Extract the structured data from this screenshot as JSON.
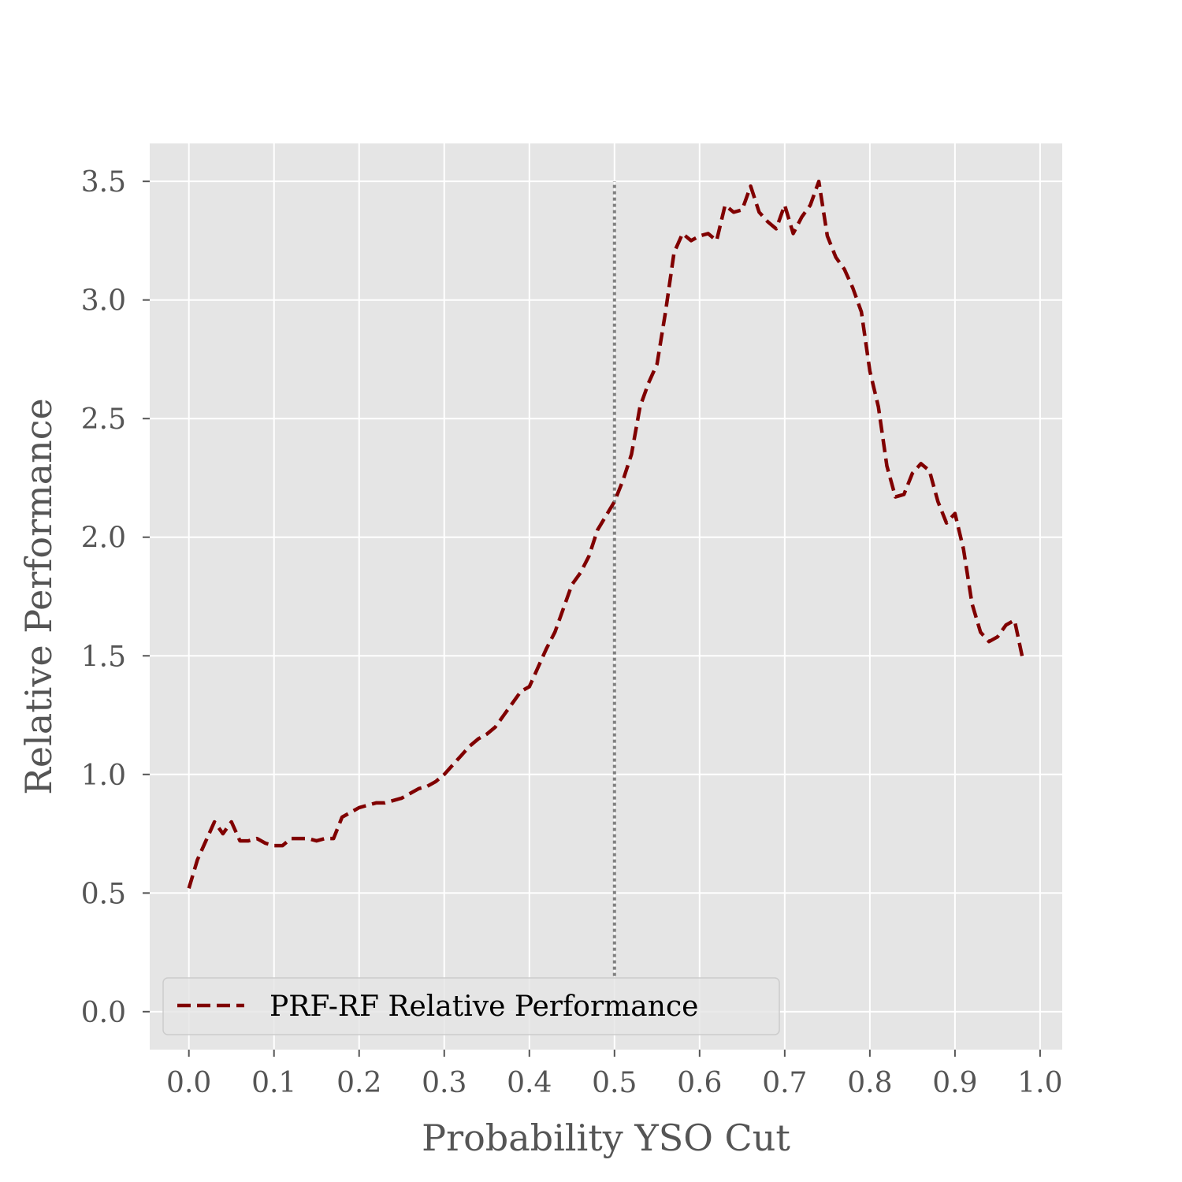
{
  "chart_data": {
    "type": "line",
    "xlabel": "Probability YSO Cut",
    "ylabel": "Relative Performance",
    "xlim": [
      -0.046,
      1.026
    ],
    "ylim": [
      -0.16,
      3.66
    ],
    "xticks": [
      0.0,
      0.1,
      0.2,
      0.3,
      0.4,
      0.5,
      0.6,
      0.7,
      0.8,
      0.9,
      1.0
    ],
    "xtick_labels": [
      "0.0",
      "0.1",
      "0.2",
      "0.3",
      "0.4",
      "0.5",
      "0.6",
      "0.7",
      "0.8",
      "0.9",
      "1.0"
    ],
    "yticks": [
      0.0,
      0.5,
      1.0,
      1.5,
      2.0,
      2.5,
      3.0,
      3.5
    ],
    "ytick_labels": [
      "0.0",
      "0.5",
      "1.0",
      "1.5",
      "2.0",
      "2.5",
      "3.0",
      "3.5"
    ],
    "grid": true,
    "legend_position": "lower-left",
    "background_color": "#e5e5e5",
    "series": [
      {
        "name": "PRF-RF Relative Performance",
        "color": "#800000",
        "style": "dashed",
        "x": [
          0.0,
          0.01,
          0.02,
          0.03,
          0.04,
          0.05,
          0.06,
          0.07,
          0.08,
          0.09,
          0.1,
          0.11,
          0.12,
          0.13,
          0.14,
          0.15,
          0.16,
          0.17,
          0.18,
          0.19,
          0.2,
          0.21,
          0.22,
          0.23,
          0.24,
          0.25,
          0.26,
          0.27,
          0.28,
          0.29,
          0.3,
          0.31,
          0.32,
          0.33,
          0.34,
          0.35,
          0.36,
          0.37,
          0.38,
          0.39,
          0.4,
          0.41,
          0.42,
          0.43,
          0.44,
          0.45,
          0.46,
          0.47,
          0.48,
          0.49,
          0.5,
          0.51,
          0.52,
          0.53,
          0.54,
          0.55,
          0.56,
          0.57,
          0.58,
          0.59,
          0.6,
          0.61,
          0.62,
          0.63,
          0.64,
          0.65,
          0.66,
          0.67,
          0.68,
          0.69,
          0.7,
          0.71,
          0.72,
          0.73,
          0.74,
          0.75,
          0.76,
          0.77,
          0.78,
          0.79,
          0.8,
          0.81,
          0.82,
          0.83,
          0.84,
          0.85,
          0.86,
          0.87,
          0.88,
          0.89,
          0.9,
          0.91,
          0.92,
          0.93,
          0.94,
          0.95,
          0.96,
          0.97,
          0.98
        ],
        "y": [
          0.52,
          0.64,
          0.72,
          0.8,
          0.75,
          0.8,
          0.72,
          0.72,
          0.73,
          0.71,
          0.7,
          0.7,
          0.73,
          0.73,
          0.73,
          0.72,
          0.73,
          0.73,
          0.82,
          0.84,
          0.86,
          0.87,
          0.88,
          0.88,
          0.89,
          0.9,
          0.92,
          0.94,
          0.95,
          0.97,
          1.0,
          1.04,
          1.08,
          1.12,
          1.15,
          1.17,
          1.2,
          1.25,
          1.3,
          1.35,
          1.37,
          1.45,
          1.53,
          1.6,
          1.7,
          1.8,
          1.85,
          1.92,
          2.03,
          2.09,
          2.15,
          2.24,
          2.35,
          2.55,
          2.65,
          2.73,
          2.95,
          3.2,
          3.28,
          3.25,
          3.27,
          3.28,
          3.25,
          3.4,
          3.37,
          3.38,
          3.48,
          3.37,
          3.33,
          3.3,
          3.4,
          3.28,
          3.35,
          3.4,
          3.5,
          3.27,
          3.18,
          3.13,
          3.05,
          2.95,
          2.7,
          2.55,
          2.3,
          2.17,
          2.18,
          2.27,
          2.31,
          2.28,
          2.15,
          2.06,
          2.1,
          1.95,
          1.72,
          1.6,
          1.56,
          1.58,
          1.63,
          1.65,
          1.48
        ]
      }
    ],
    "reference_line": {
      "x": 0.5,
      "y_range": [
        0.15,
        3.5
      ],
      "color": "#808080",
      "style": "dotted"
    }
  }
}
